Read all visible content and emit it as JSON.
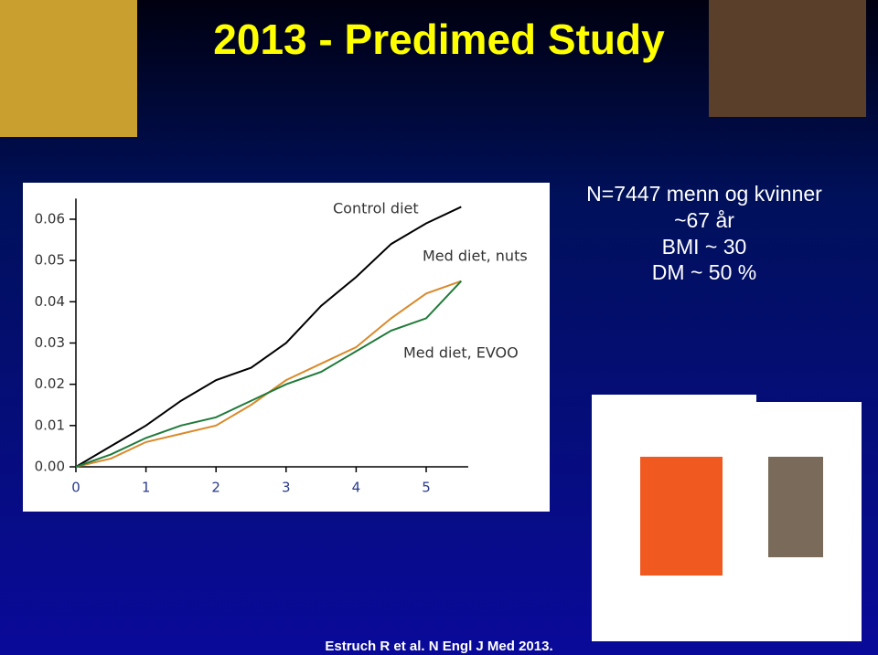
{
  "title": "2013 - Predimed Study",
  "notes": [
    "N=7447 menn og kvinner",
    "~67 år",
    "BMI ~ 30",
    "DM ~ 50 %"
  ],
  "citation": "Estruch R et al. N Engl J Med 2013.",
  "chart_data": {
    "type": "line",
    "x": [
      0,
      0.5,
      1,
      1.5,
      2,
      2.5,
      3,
      3.5,
      4,
      4.5,
      5,
      5.5
    ],
    "series": [
      {
        "name": "Control diet",
        "color": "#000000",
        "values": [
          0,
          0.005,
          0.01,
          0.016,
          0.021,
          0.024,
          0.03,
          0.039,
          0.046,
          0.054,
          0.059,
          0.063
        ]
      },
      {
        "name": "Med diet, nuts",
        "color": "#d98a2b",
        "values": [
          0,
          0.002,
          0.006,
          0.008,
          0.01,
          0.015,
          0.021,
          0.025,
          0.029,
          0.036,
          0.042,
          0.045
        ]
      },
      {
        "name": "Med diet, EVOO",
        "color": "#1f7a3a",
        "values": [
          0,
          0.003,
          0.007,
          0.01,
          0.012,
          0.016,
          0.02,
          0.023,
          0.028,
          0.033,
          0.036,
          0.045
        ]
      }
    ],
    "xlim": [
      0,
      5.6
    ],
    "ylim": [
      0,
      0.065
    ],
    "xticks": [
      0,
      1,
      2,
      3,
      4,
      5
    ],
    "yticks": [
      {
        "value": 0,
        "label": "0.00"
      },
      0.01,
      0.02,
      0.03,
      0.04,
      0.05,
      0.06
    ],
    "grid": false
  }
}
